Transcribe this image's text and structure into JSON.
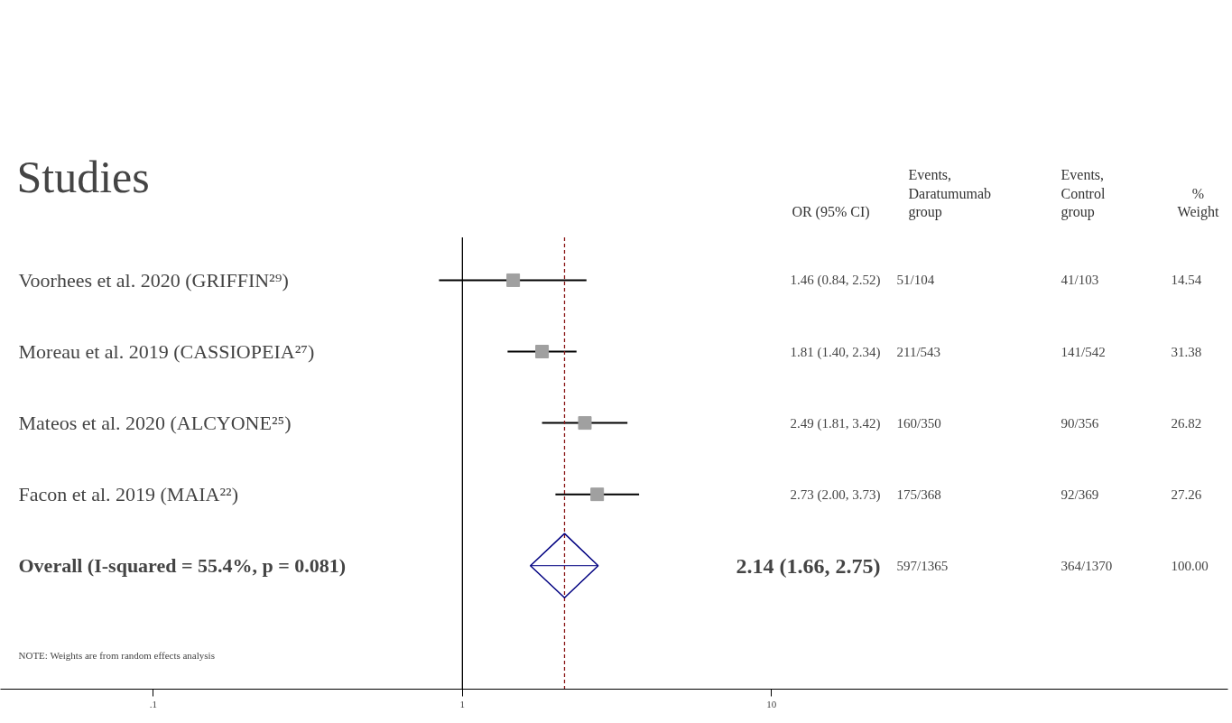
{
  "chart_data": {
    "type": "scatter",
    "orientation": "horizontal",
    "title": "Studies",
    "log": "x",
    "grid": false,
    "tick_labels": "x",
    "categories": [
      "Voorhees et al. 2020 (GRIFFIN²⁹)",
      "Moreau et al. 2019 (CASSIOPEIA²⁷)",
      "Mateos et al. 2020 (ALCYONE²⁵)",
      "Facon et al. 2019 (MAIA²²)",
      "Overall  (I-squared = 55.4%, p = 0.081)"
    ],
    "series": [
      {
        "marker": "square",
        "color": "#a0a0a0",
        "values": [
          1.46,
          1.81,
          2.49,
          2.73,
          null
        ],
        "errors": [
          [
            0.84,
            2.52
          ],
          [
            1.4,
            2.34
          ],
          [
            1.81,
            3.42
          ],
          [
            2.0,
            3.73
          ],
          null
        ]
      },
      {
        "marker": "diamond",
        "color": "#000080",
        "values": [
          null,
          null,
          null,
          null,
          2.14
        ],
        "errors": [
          null,
          null,
          null,
          null,
          [
            1.66,
            2.75
          ]
        ]
      }
    ],
    "xlim": [
      0.032,
      300
    ],
    "xticks": [
      {
        "value": 0.1,
        "label": ".1"
      },
      1,
      10
    ],
    "ref_lines": [
      {
        "axis": "x",
        "value": 1,
        "color": "#000000",
        "line_style": "solid"
      },
      {
        "axis": "x",
        "value": 2.14,
        "color": "#8b1a1a",
        "line_style": "dashed"
      }
    ],
    "annotations": [
      "OR (95% CI)",
      "Events,\nDaratumumab\ngroup",
      "Events,\nControl\ngroup",
      "%\nWeight",
      "1.46 (0.84, 2.52)",
      "51/104",
      "41/103",
      "14.54",
      "1.81 (1.40, 2.34)",
      "211/543",
      "141/542",
      "31.38",
      "2.49 (1.81, 3.42)",
      "160/350",
      "90/356",
      "26.82",
      "2.73 (2.00, 3.73)",
      "175/368",
      "92/369",
      "27.26",
      "2.14 (1.66, 2.75)",
      "597/1365",
      "364/1370",
      "100.00",
      "NOTE: Weights are from random effects analysis"
    ]
  }
}
